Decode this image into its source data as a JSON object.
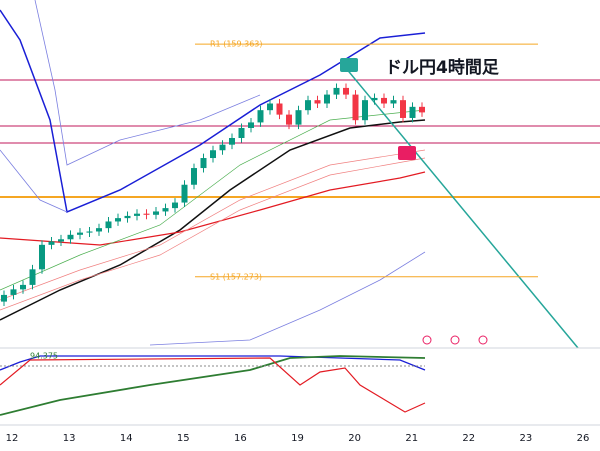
{
  "chart_data": {
    "type": "candlestick",
    "title": "ドル円4時間足",
    "open": [
      157.05,
      157.11,
      157.16,
      157.2,
      157.34,
      157.56,
      157.59,
      157.61,
      157.65,
      157.67,
      157.68,
      157.71,
      157.77,
      157.8,
      157.82,
      157.84,
      157.83,
      157.86,
      157.89,
      157.94,
      158.1,
      158.25,
      158.34,
      158.41,
      158.46,
      158.52,
      158.61,
      158.66,
      158.77,
      158.83,
      158.73,
      158.64,
      158.77,
      158.86,
      158.83,
      158.91,
      158.97,
      158.91,
      158.68,
      158.86,
      158.88,
      158.83,
      158.86,
      158.7,
      158.8
    ],
    "high": [
      157.15,
      157.2,
      157.24,
      157.38,
      157.6,
      157.63,
      157.65,
      157.69,
      157.71,
      157.72,
      157.75,
      157.81,
      157.84,
      157.86,
      157.88,
      157.88,
      157.9,
      157.93,
      157.98,
      158.14,
      158.29,
      158.38,
      158.45,
      158.5,
      158.56,
      158.65,
      158.7,
      158.81,
      158.87,
      158.87,
      158.77,
      158.81,
      158.9,
      158.9,
      158.95,
      159.01,
      159.01,
      158.95,
      158.9,
      158.92,
      158.92,
      158.9,
      158.9,
      158.84,
      158.84
    ],
    "low": [
      157.01,
      157.07,
      157.12,
      157.16,
      157.3,
      157.52,
      157.55,
      157.57,
      157.61,
      157.63,
      157.64,
      157.67,
      157.73,
      157.76,
      157.78,
      157.79,
      157.79,
      157.82,
      157.85,
      157.9,
      158.06,
      158.21,
      158.3,
      158.37,
      158.42,
      158.48,
      158.57,
      158.62,
      158.73,
      158.69,
      158.6,
      158.6,
      158.73,
      158.79,
      158.79,
      158.87,
      158.87,
      158.64,
      158.64,
      158.82,
      158.79,
      158.79,
      158.66,
      158.66,
      158.71
    ],
    "close": [
      157.11,
      157.16,
      157.2,
      157.34,
      157.56,
      157.59,
      157.61,
      157.65,
      157.67,
      157.68,
      157.71,
      157.77,
      157.8,
      157.82,
      157.84,
      157.83,
      157.86,
      157.89,
      157.94,
      158.1,
      158.25,
      158.34,
      158.41,
      158.46,
      158.52,
      158.61,
      158.66,
      158.77,
      158.83,
      158.73,
      158.64,
      158.77,
      158.86,
      158.83,
      158.91,
      158.97,
      158.91,
      158.68,
      158.86,
      158.88,
      158.83,
      158.86,
      158.7,
      158.8,
      158.75
    ],
    "up_color": "#089981",
    "down_color": "#f23645",
    "ylim": [
      156.66,
      159.76
    ],
    "levels": [
      {
        "label": "R1 (159.363)",
        "value": 159.363
      },
      {
        "label": "S1 (157.273)",
        "value": 157.273
      }
    ],
    "level_color": "#f5a623",
    "x_labels": [
      "12",
      "13",
      "14",
      "15",
      "16",
      "19",
      "20",
      "21",
      "22",
      "23",
      "26"
    ],
    "oscillator_label": "94.375"
  }
}
